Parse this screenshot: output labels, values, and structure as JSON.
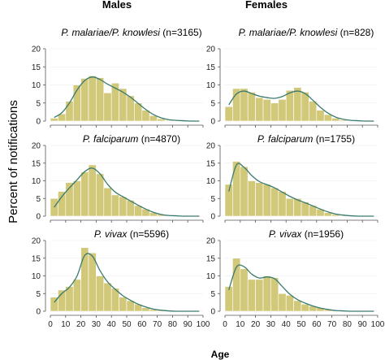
{
  "headers": {
    "males": "Males",
    "females": "Females"
  },
  "y_axis_label": "Percent of notifications",
  "x_axis_label": "Age",
  "chart_data": [
    {
      "type": "bar",
      "panel": "malariae-males",
      "title_species": "P. malariae/P. knowlesi",
      "title_count": " (n=3165)",
      "x_bin_width": 5,
      "xlim": [
        0,
        100
      ],
      "ylim": [
        0,
        20
      ],
      "x_ticks": [
        "0",
        "10",
        "20",
        "30",
        "40",
        "50",
        "60",
        "70",
        "80",
        "90",
        "100"
      ],
      "y_ticks": [
        "0",
        "5",
        "10",
        "15",
        "20"
      ],
      "bin_starts": [
        0,
        5,
        10,
        15,
        20,
        25,
        30,
        35,
        40,
        45,
        50,
        55,
        60,
        65,
        70,
        75,
        80,
        85,
        90,
        95
      ],
      "values": [
        0.8,
        2.0,
        5.5,
        10.0,
        11.8,
        12.5,
        12.0,
        7.8,
        10.5,
        9.0,
        7.0,
        5.0,
        3.0,
        1.5,
        0.6,
        0.2,
        0.1,
        0,
        0,
        0
      ],
      "density_curve": [
        1.0,
        2.3,
        5.0,
        8.6,
        11.2,
        12.2,
        11.5,
        10.2,
        9.1,
        8.0,
        6.6,
        4.9,
        3.2,
        1.8,
        0.9,
        0.4,
        0.2,
        0.1,
        0,
        0
      ]
    },
    {
      "type": "bar",
      "panel": "malariae-females",
      "title_species": "P. malariae/P. knowlesi",
      "title_count": " (n=828)",
      "x_bin_width": 5,
      "xlim": [
        0,
        100
      ],
      "ylim": [
        0,
        20
      ],
      "x_ticks": [
        "0",
        "10",
        "20",
        "30",
        "40",
        "50",
        "60",
        "70",
        "80",
        "90",
        "100"
      ],
      "y_ticks": [
        "0",
        "5",
        "10",
        "15",
        "20"
      ],
      "bin_starts": [
        0,
        5,
        10,
        15,
        20,
        25,
        30,
        35,
        40,
        45,
        50,
        55,
        60,
        65,
        70,
        75,
        80,
        85,
        90,
        95
      ],
      "values": [
        4.0,
        9.0,
        9.0,
        8.0,
        6.5,
        6.0,
        5.0,
        6.0,
        8.5,
        9.3,
        8.0,
        5.5,
        3.0,
        1.8,
        0.8,
        0.3,
        0.1,
        0,
        0,
        0
      ],
      "density_curve": [
        4.5,
        7.5,
        8.3,
        7.6,
        6.9,
        6.5,
        6.3,
        6.8,
        7.8,
        8.3,
        7.6,
        5.8,
        3.8,
        2.2,
        1.1,
        0.5,
        0.2,
        0.1,
        0,
        0
      ]
    },
    {
      "type": "bar",
      "panel": "falciparum-males",
      "title_species": "P. falciparum",
      "title_count": " (n=4870)",
      "x_bin_width": 5,
      "xlim": [
        0,
        100
      ],
      "ylim": [
        0,
        20
      ],
      "x_ticks": [
        "0",
        "10",
        "20",
        "30",
        "40",
        "50",
        "60",
        "70",
        "80",
        "90",
        "100"
      ],
      "y_ticks": [
        "0",
        "5",
        "10",
        "15",
        "20"
      ],
      "bin_starts": [
        0,
        5,
        10,
        15,
        20,
        25,
        30,
        35,
        40,
        45,
        50,
        55,
        60,
        65,
        70,
        75,
        80,
        85,
        90,
        95
      ],
      "values": [
        5.0,
        7.0,
        9.5,
        10.0,
        12.5,
        14.5,
        12.0,
        8.0,
        6.0,
        5.5,
        4.5,
        3.0,
        2.0,
        1.0,
        0.5,
        0.3,
        0.1,
        0,
        0,
        0
      ],
      "density_curve": [
        2.5,
        5.5,
        8.0,
        10.3,
        12.6,
        13.6,
        12.0,
        9.0,
        6.8,
        5.5,
        4.3,
        3.1,
        2.0,
        1.1,
        0.5,
        0.2,
        0.1,
        0,
        0,
        0
      ]
    },
    {
      "type": "bar",
      "panel": "falciparum-females",
      "title_species": "P. falciparum",
      "title_count": " (n=1755)",
      "x_bin_width": 5,
      "xlim": [
        0,
        100
      ],
      "ylim": [
        0,
        20
      ],
      "x_ticks": [
        "0",
        "10",
        "20",
        "30",
        "40",
        "50",
        "60",
        "70",
        "80",
        "90",
        "100"
      ],
      "y_ticks": [
        "0",
        "5",
        "10",
        "15",
        "20"
      ],
      "bin_starts": [
        0,
        5,
        10,
        15,
        20,
        25,
        30,
        35,
        40,
        45,
        50,
        55,
        60,
        65,
        70,
        75,
        80,
        85,
        90,
        95
      ],
      "values": [
        9.0,
        15.5,
        14.0,
        10.0,
        9.5,
        9.0,
        8.0,
        7.0,
        5.0,
        5.0,
        4.0,
        3.0,
        2.0,
        1.0,
        0.5,
        0.2,
        0.1,
        0,
        0,
        0
      ],
      "density_curve": [
        7.0,
        14.5,
        13.8,
        11.5,
        9.8,
        8.9,
        8.0,
        6.8,
        5.6,
        4.6,
        3.8,
        2.9,
        2.0,
        1.2,
        0.6,
        0.3,
        0.1,
        0,
        0,
        0
      ]
    },
    {
      "type": "bar",
      "panel": "vivax-males",
      "title_species": "P. vivax",
      "title_count": " (n=5596)",
      "x_bin_width": 5,
      "xlim": [
        0,
        100
      ],
      "ylim": [
        0,
        20
      ],
      "x_ticks": [
        "0",
        "10",
        "20",
        "30",
        "40",
        "50",
        "60",
        "70",
        "80",
        "90",
        "100"
      ],
      "y_ticks": [
        "0",
        "5",
        "10",
        "15",
        "20"
      ],
      "bin_starts": [
        0,
        5,
        10,
        15,
        20,
        25,
        30,
        35,
        40,
        45,
        50,
        55,
        60,
        65,
        70,
        75,
        80,
        85,
        90,
        95
      ],
      "values": [
        4.0,
        6.0,
        7.0,
        9.0,
        18.0,
        16.5,
        10.0,
        8.0,
        6.5,
        4.0,
        3.0,
        2.0,
        1.0,
        0.5,
        0.3,
        0.1,
        0,
        0,
        0,
        0
      ],
      "density_curve": [
        2.5,
        5.0,
        6.8,
        10.0,
        15.8,
        15.6,
        11.5,
        8.3,
        6.2,
        4.4,
        3.1,
        2.0,
        1.2,
        0.6,
        0.3,
        0.1,
        0,
        0,
        0,
        0
      ]
    },
    {
      "type": "bar",
      "panel": "vivax-females",
      "title_species": "P. vivax",
      "title_count": " (n=1956)",
      "x_bin_width": 5,
      "xlim": [
        0,
        100
      ],
      "ylim": [
        0,
        20
      ],
      "x_ticks": [
        "0",
        "10",
        "20",
        "30",
        "40",
        "50",
        "60",
        "70",
        "80",
        "90",
        "100"
      ],
      "y_ticks": [
        "0",
        "5",
        "10",
        "15",
        "20"
      ],
      "bin_starts": [
        0,
        5,
        10,
        15,
        20,
        25,
        30,
        35,
        40,
        45,
        50,
        55,
        60,
        65,
        70,
        75,
        80,
        85,
        90,
        95
      ],
      "values": [
        7.0,
        15.0,
        12.0,
        9.0,
        9.0,
        10.0,
        9.5,
        5.0,
        4.5,
        3.0,
        2.0,
        1.5,
        1.0,
        0.5,
        0.2,
        0.1,
        0,
        0,
        0,
        0
      ],
      "density_curve": [
        6.0,
        12.5,
        12.6,
        10.5,
        9.4,
        9.7,
        9.2,
        7.0,
        4.8,
        3.3,
        2.3,
        1.5,
        0.9,
        0.5,
        0.2,
        0.1,
        0,
        0,
        0,
        0
      ]
    }
  ],
  "colors": {
    "bar": "#d2c87a",
    "curve": "#3a7a6e"
  }
}
